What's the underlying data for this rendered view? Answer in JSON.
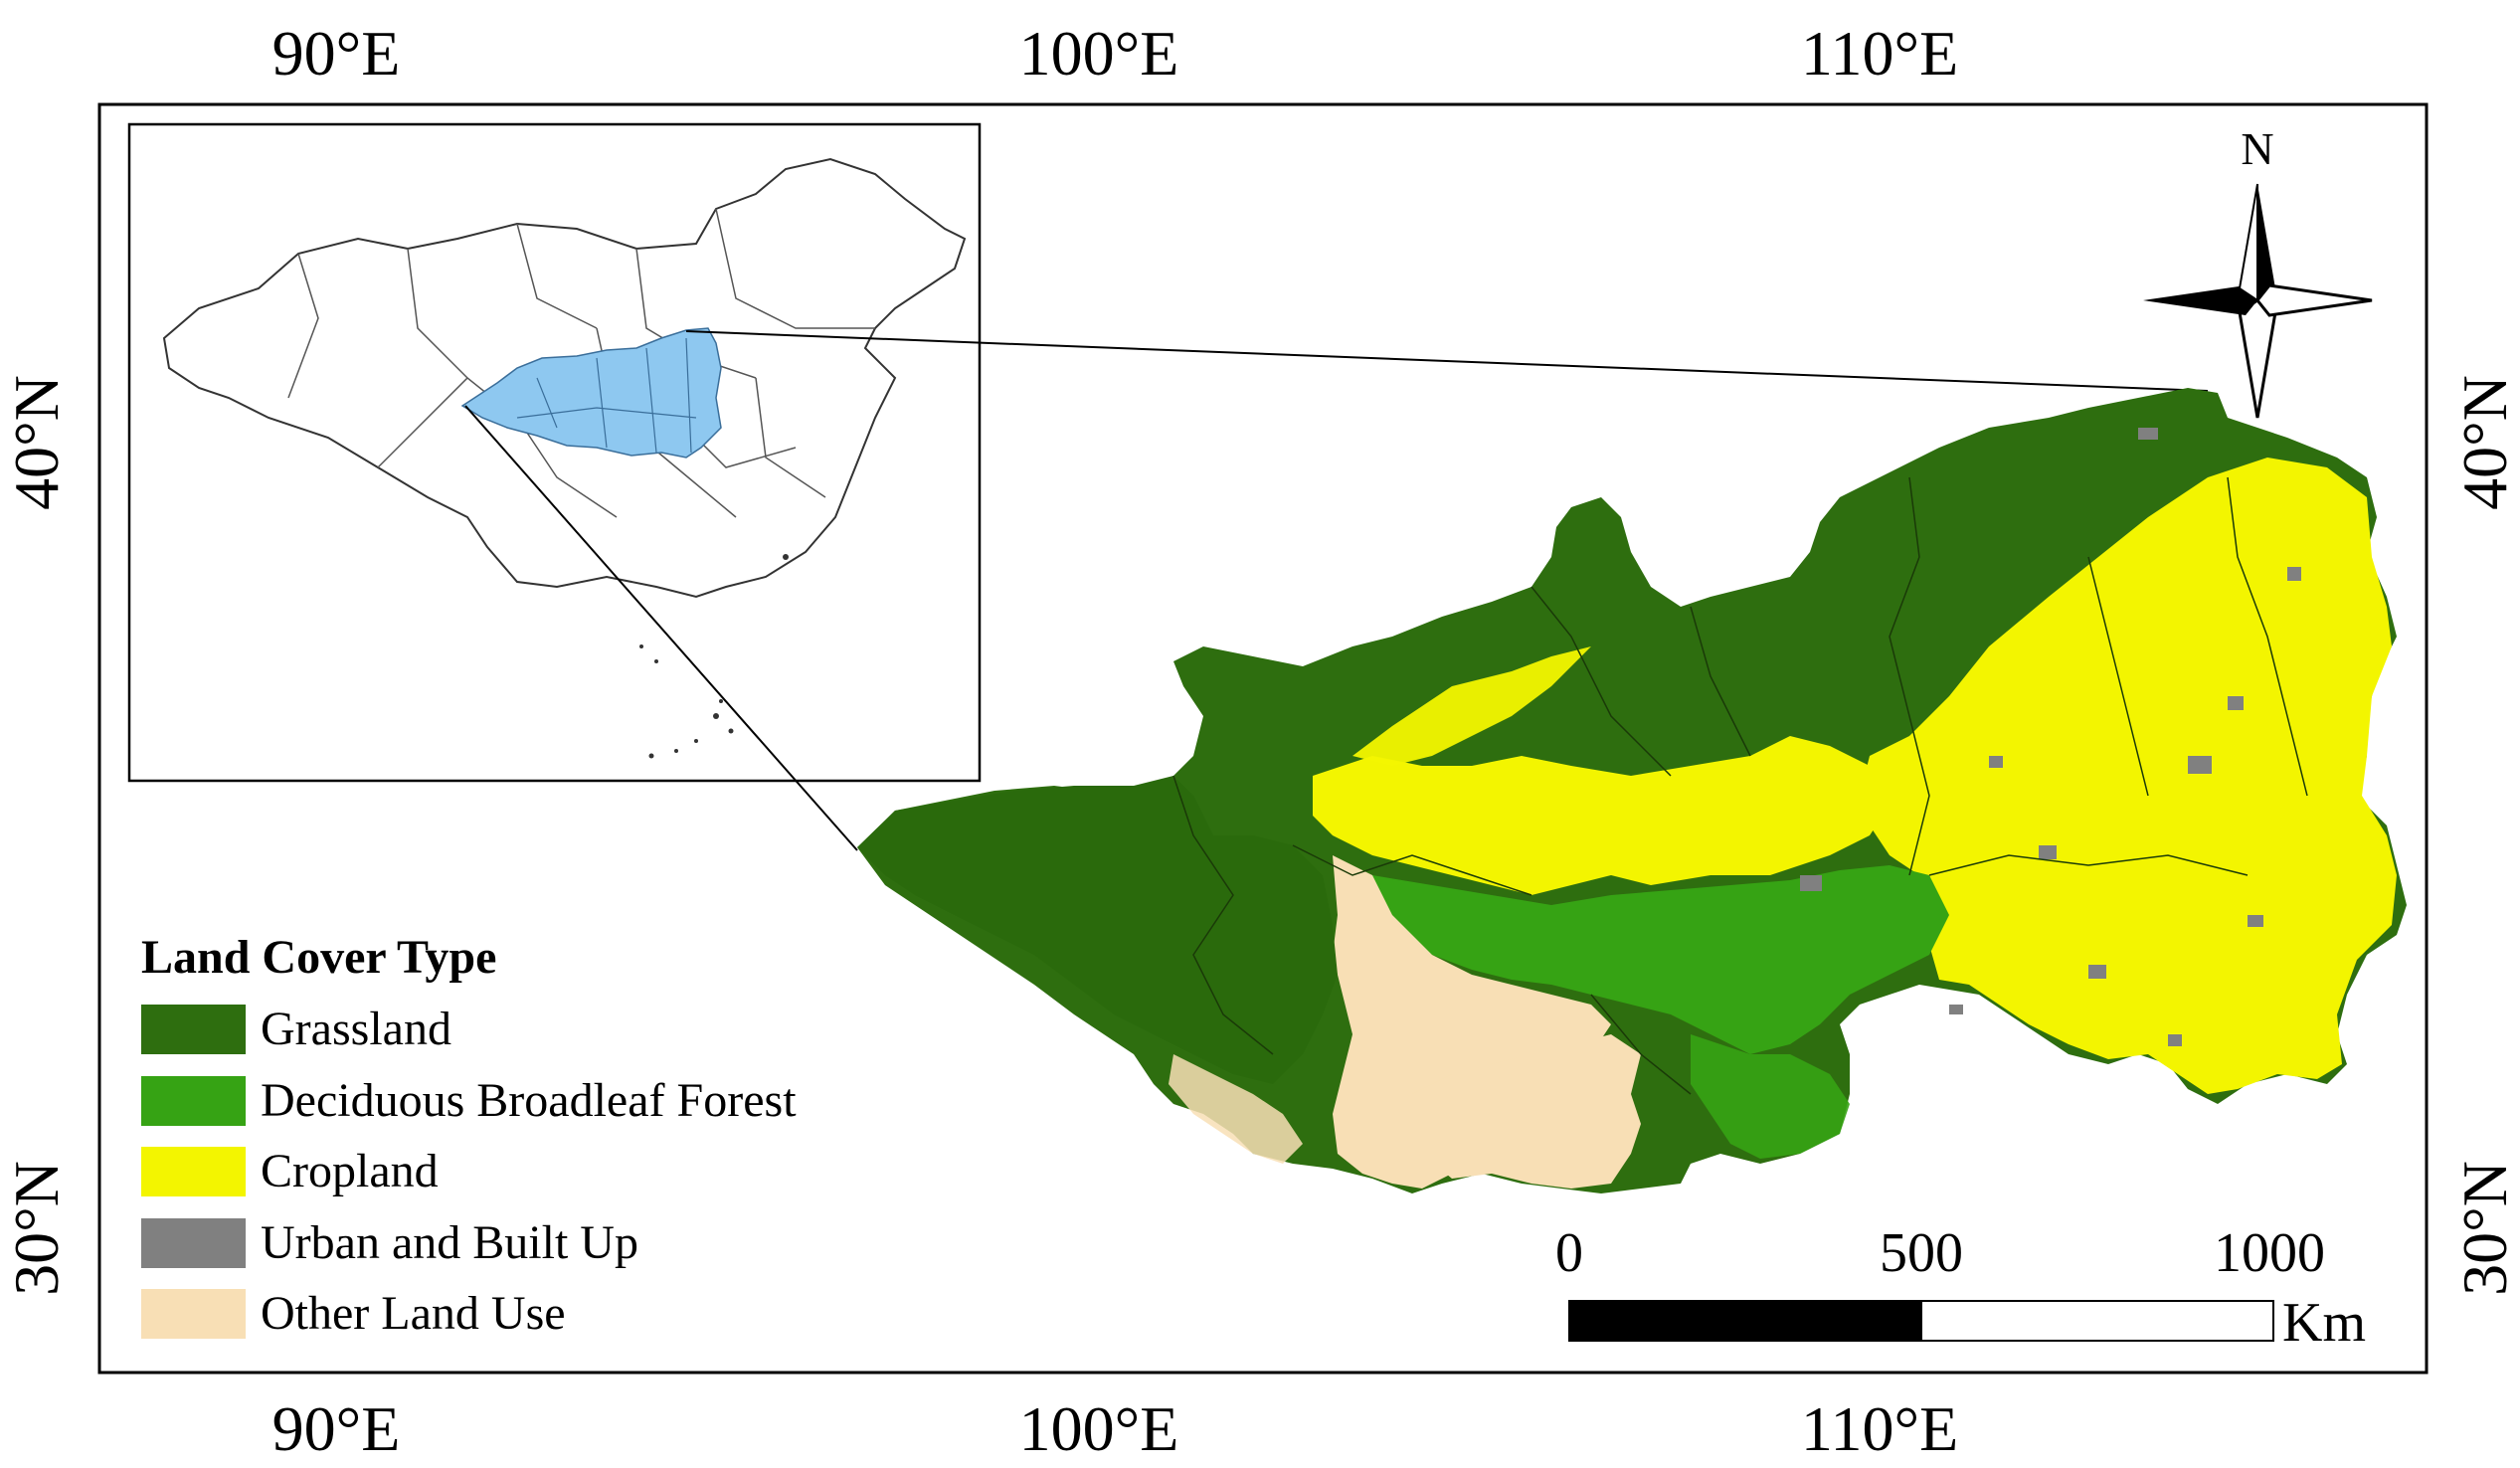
{
  "map": {
    "lon_ticks": [
      "90°E",
      "100°E",
      "110°E"
    ],
    "lat_ticks": [
      "40°N",
      "30°N"
    ],
    "north_label": "N"
  },
  "legend": {
    "title": "Land Cover Type",
    "items": [
      {
        "label": "Grassland",
        "color": "#2e6e0f"
      },
      {
        "label": "Deciduous Broadleaf Forest",
        "color": "#36a314"
      },
      {
        "label": "Cropland",
        "color": "#f3f500"
      },
      {
        "label": "Urban and Built Up",
        "color": "#808080"
      },
      {
        "label": "Other Land Use",
        "color": "#f8dfb5"
      }
    ]
  },
  "scale_bar": {
    "labels": [
      "0",
      "500",
      "1000"
    ],
    "unit": "Km"
  },
  "colors": {
    "highlight_region": "#8ec8f0",
    "frame": "#000000"
  }
}
